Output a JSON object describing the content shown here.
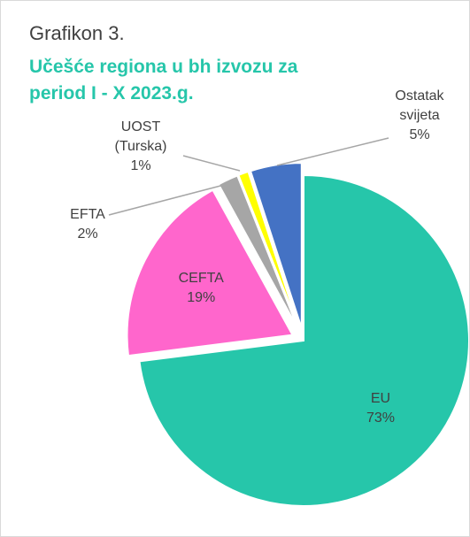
{
  "chart_data": {
    "type": "pie",
    "title": "Grafikon 3.",
    "subtitle": "Učešće regiona u bh izvozu za period I - X  2023.g.",
    "categories": [
      "EU",
      "CEFTA",
      "EFTA",
      "UOST (Turska)",
      "Ostatak svijeta"
    ],
    "values": [
      73,
      19,
      2,
      1,
      5
    ],
    "value_labels": [
      "73%",
      "19%",
      "2%",
      "1%",
      "5%"
    ],
    "colors": [
      "#26c6aa",
      "#ff66cc",
      "#a6a6a6",
      "#ffff00",
      "#4472c4"
    ]
  }
}
